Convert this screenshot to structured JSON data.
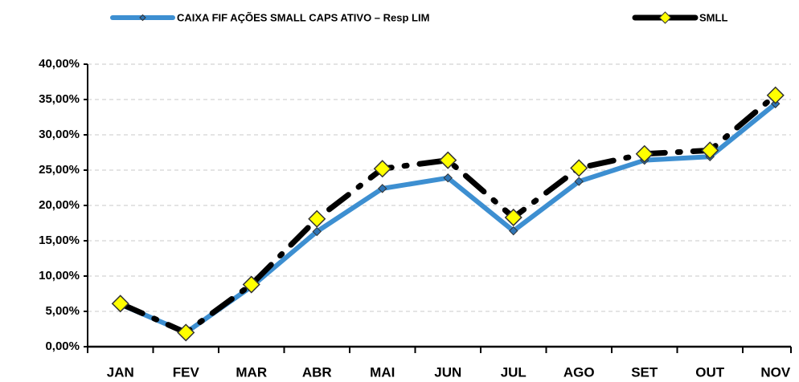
{
  "chart_data": {
    "type": "line",
    "categories": [
      "JAN",
      "FEV",
      "MAR",
      "ABR",
      "MAI",
      "JUN",
      "JUL",
      "AGO",
      "SET",
      "OUT",
      "NOV"
    ],
    "series": [
      {
        "name": "CAIXA FIF AÇÕES SMALL CAPS ATIVO – Resp LIM",
        "color": "#3d8fd1",
        "marker_color": "#2e75b6",
        "values": [
          6.0,
          2.0,
          8.5,
          16.3,
          22.4,
          23.9,
          16.4,
          23.4,
          26.4,
          26.9,
          34.4
        ]
      },
      {
        "name": "SMLL",
        "color": "#000000",
        "marker_color": "#ffff00",
        "values": [
          6.1,
          2.0,
          8.8,
          18.1,
          25.2,
          26.4,
          18.3,
          25.3,
          27.3,
          27.8,
          35.6
        ]
      }
    ],
    "ylim": [
      0,
      40
    ],
    "yticks": [
      {
        "value": 0,
        "label": "0,00%"
      },
      {
        "value": 5,
        "label": "5,00%"
      },
      {
        "value": 10,
        "label": "10,00%"
      },
      {
        "value": 15,
        "label": "15,00%"
      },
      {
        "value": 20,
        "label": "20,00%"
      },
      {
        "value": 25,
        "label": "25,00%"
      },
      {
        "value": 30,
        "label": "30,00%"
      },
      {
        "value": 35,
        "label": "35,00%"
      },
      {
        "value": 40,
        "label": "40,00%"
      }
    ],
    "grid": true,
    "legend": "top"
  }
}
